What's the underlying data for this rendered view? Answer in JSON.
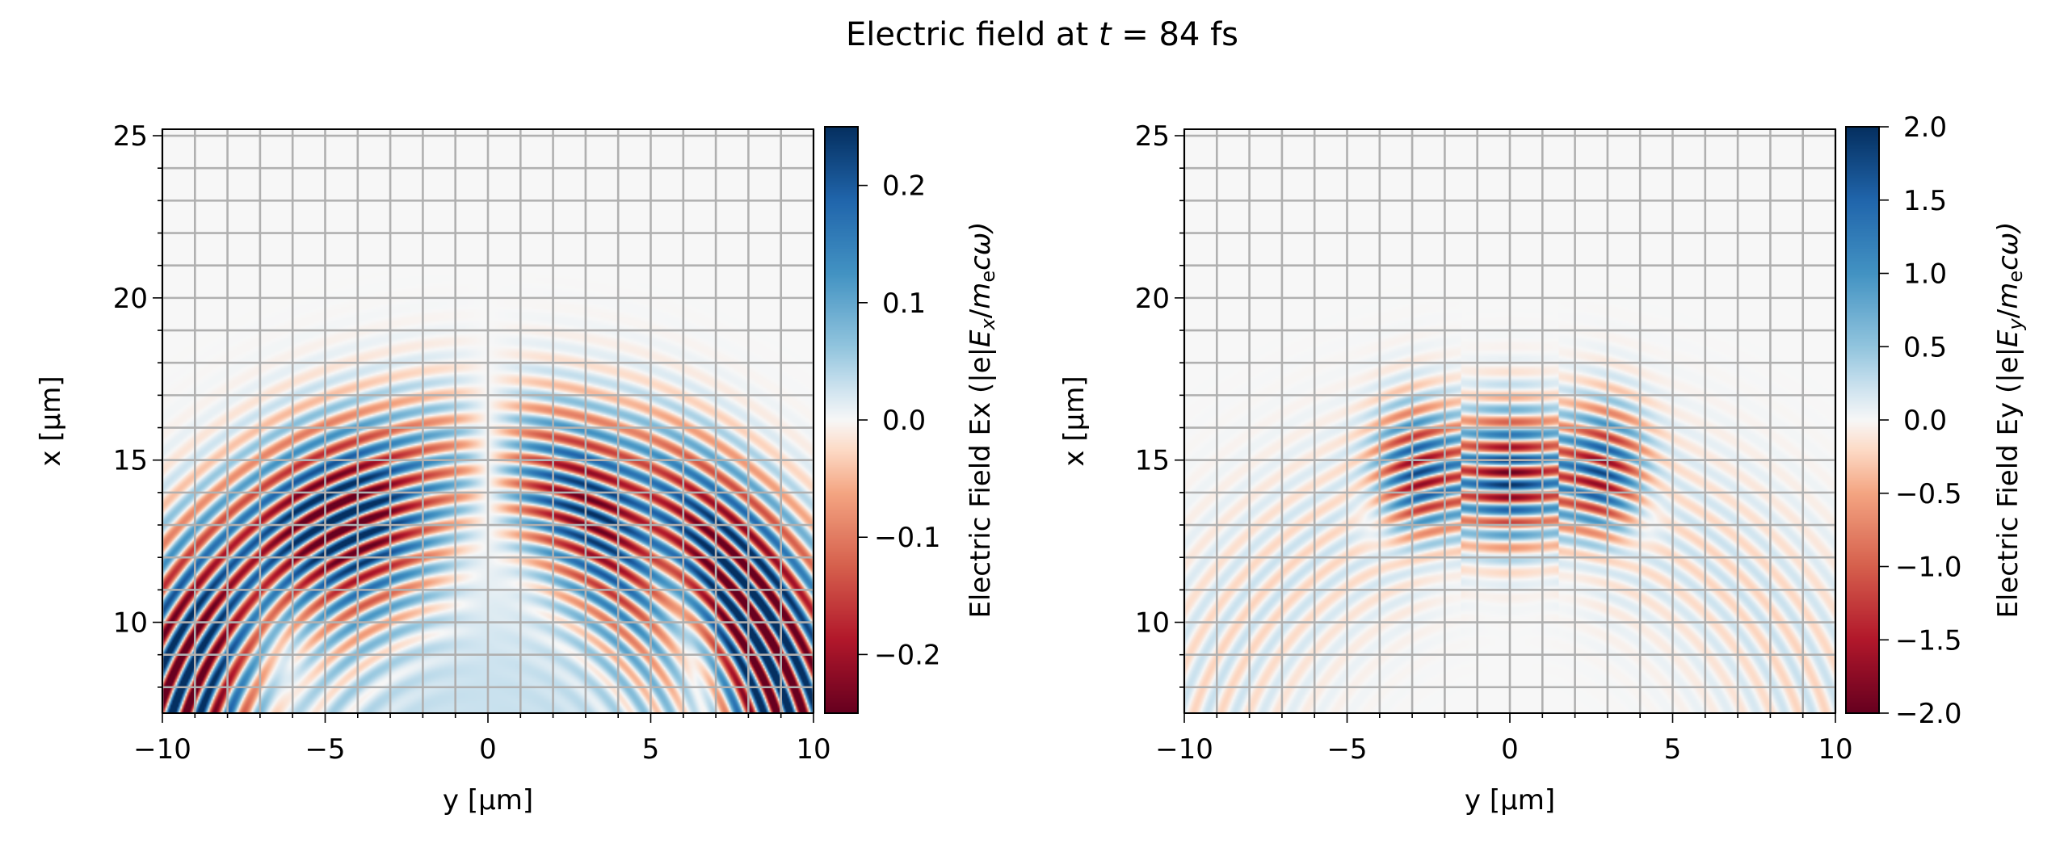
{
  "title": {
    "prefix": "Electric field at ",
    "var": "t",
    "suffix": " = 84 fs"
  },
  "chart_data": [
    {
      "type": "heatmap",
      "field": "Ex",
      "colormap": "RdBu_r",
      "xlabel": "y [µm]",
      "ylabel": "x [µm]",
      "xlim": [
        -10,
        10
      ],
      "ylim": [
        7.2,
        25.2
      ],
      "xticks": [
        -10,
        -5,
        0,
        5,
        10
      ],
      "xtick_labels": [
        "−10",
        "−5",
        "0",
        "5",
        "10"
      ],
      "yticks": [
        10,
        15,
        20,
        25
      ],
      "ytick_labels": [
        "10",
        "15",
        "20",
        "25"
      ],
      "grid": true,
      "grid_step": 1,
      "colorbar": {
        "vlim": [
          -0.25,
          0.25
        ],
        "ticks": [
          -0.2,
          -0.1,
          0.0,
          0.1,
          0.2
        ],
        "tick_labels": [
          "−0.2",
          "−0.1",
          "0.0",
          "0.1",
          "0.2"
        ],
        "label": {
          "prefix": "Electric Field Ex (|e|",
          "E": "E",
          "sub1": "x",
          "mid": "/",
          "m": "m",
          "sub2": "e",
          "suffix": "cω)"
        }
      },
      "description_of_pattern": "curved antisymmetric wavefronts centred near x≈14 µm"
    },
    {
      "type": "heatmap",
      "field": "Ey",
      "colormap": "RdBu_r",
      "xlabel": "y [µm]",
      "ylabel": "x [µm]",
      "xlim": [
        -10,
        10
      ],
      "ylim": [
        7.2,
        25.2
      ],
      "xticks": [
        -10,
        -5,
        0,
        5,
        10
      ],
      "xtick_labels": [
        "−10",
        "−5",
        "0",
        "5",
        "10"
      ],
      "yticks": [
        10,
        15,
        20,
        25
      ],
      "ytick_labels": [
        "10",
        "15",
        "20",
        "25"
      ],
      "grid": true,
      "grid_step": 1,
      "colorbar": {
        "vlim": [
          -2.0,
          2.0
        ],
        "ticks": [
          -2.0,
          -1.5,
          -1.0,
          -0.5,
          0.0,
          0.5,
          1.0,
          1.5,
          2.0
        ],
        "tick_labels": [
          "−2.0",
          "−1.5",
          "−1.0",
          "−0.5",
          "0.0",
          "0.5",
          "1.0",
          "1.5",
          "2.0"
        ],
        "label": {
          "prefix": "Electric Field Ey (|e|",
          "E": "E",
          "sub1": "y",
          "mid": "/",
          "m": "m",
          "sub2": "e",
          "suffix": "cω)"
        }
      },
      "description_of_pattern": "symmetric three-lobed laser pulse centred near x≈14.5 µm"
    }
  ],
  "colors": {
    "grid": "#b0b0b0",
    "neg_max": "#67001f",
    "zero": "#f7f7f7",
    "pos_max": "#053061"
  }
}
